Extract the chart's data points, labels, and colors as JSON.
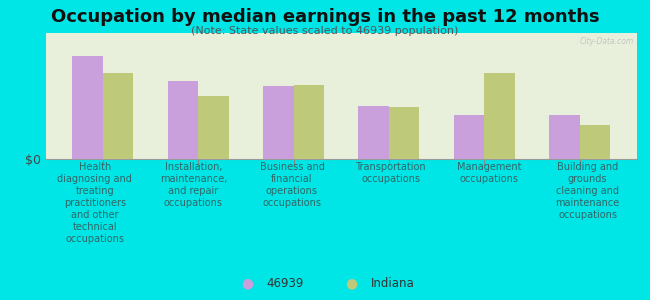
{
  "title": "Occupation by median earnings in the past 12 months",
  "subtitle": "(Note: State values scaled to 46939 population)",
  "categories": [
    "Health\ndiagnosing and\ntreating\npractitioners\nand other\ntechnical\noccupations",
    "Installation,\nmaintenance,\nand repair\noccupations",
    "Business and\nfinancial\noperations\noccupations",
    "Transportation\noccupations",
    "Management\noccupations",
    "Building and\ngrounds\ncleaning and\nmaintenance\noccupations"
  ],
  "values_46939": [
    0.82,
    0.62,
    0.58,
    0.42,
    0.35,
    0.35
  ],
  "values_indiana": [
    0.68,
    0.5,
    0.59,
    0.41,
    0.68,
    0.27
  ],
  "color_46939": "#c9a0dc",
  "color_indiana": "#bec97a",
  "background_color": "#00e5e5",
  "plot_bg": "#e8f0dc",
  "bar_width": 0.32,
  "ylabel": "$0",
  "legend_label_1": "46939",
  "legend_label_2": "Indiana",
  "watermark": "City-Data.com",
  "title_fontsize": 13,
  "subtitle_fontsize": 8,
  "tick_label_fontsize": 7,
  "legend_fontsize": 8.5
}
